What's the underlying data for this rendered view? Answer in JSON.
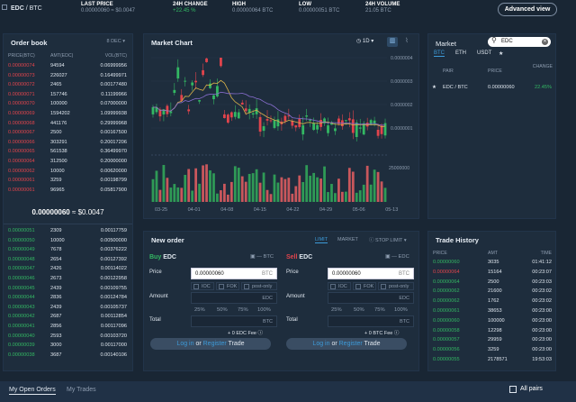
{
  "header": {
    "pair_base": "EDC",
    "pair_sep": " / ",
    "pair_quote": "BTC",
    "last_price_label": "LAST PRICE",
    "last_price_value": "0.00000060",
    "last_price_usd": "≈ $0.0047",
    "change_label": "24H CHANGE",
    "change_value": "+22.45 %",
    "high_label": "HIGH",
    "high_value": "0.00000064 BTC",
    "low_label": "LOW",
    "low_value": "0.00000051 BTC",
    "volume_label": "24H VOLUME",
    "volume_value": "21.05 BTC",
    "advanced_view": "Advanced view"
  },
  "orderbook": {
    "title": "Order book",
    "decimals": "8 DEC",
    "col_price": "PRICE(BTC)",
    "col_amt": "AMT(EDC)",
    "col_vol": "VOL(BTC)",
    "asks": [
      [
        "0.00000074",
        "94594",
        "0.06999956"
      ],
      [
        "0.00000073",
        "226027",
        "0.16499971"
      ],
      [
        "0.00000072",
        "2465",
        "0.00177480"
      ],
      [
        "0.00000071",
        "157746",
        "0.11199966"
      ],
      [
        "0.00000070",
        "100000",
        "0.07000000"
      ],
      [
        "0.00000069",
        "1594202",
        "1.09999938"
      ],
      [
        "0.00000068",
        "441176",
        "0.29999968"
      ],
      [
        "0.00000067",
        "2500",
        "0.00167500"
      ],
      [
        "0.00000066",
        "303291",
        "0.20017206"
      ],
      [
        "0.00000065",
        "561538",
        "0.36499970"
      ],
      [
        "0.00000064",
        "312500",
        "0.20000000"
      ],
      [
        "0.00000062",
        "10000",
        "0.00620000"
      ],
      [
        "0.00000061",
        "3259",
        "0.00198799"
      ],
      [
        "0.00000061",
        "96965",
        "0.05817900"
      ]
    ],
    "mid_price": "0.00000060",
    "mid_usd": "≈ $0.0047",
    "bids": [
      [
        "0.00000051",
        "2309",
        "0.00117759"
      ],
      [
        "0.00000050",
        "10000",
        "0.00500000"
      ],
      [
        "0.00000049",
        "7678",
        "0.00376222"
      ],
      [
        "0.00000048",
        "2654",
        "0.00127392"
      ],
      [
        "0.00000047",
        "2426",
        "0.00114022"
      ],
      [
        "0.00000046",
        "2673",
        "0.00122958"
      ],
      [
        "0.00000045",
        "2439",
        "0.00109755"
      ],
      [
        "0.00000044",
        "2836",
        "0.00124784"
      ],
      [
        "0.00000043",
        "2439",
        "0.00105737"
      ],
      [
        "0.00000042",
        "2687",
        "0.00112854"
      ],
      [
        "0.00000041",
        "2856",
        "0.00117096"
      ],
      [
        "0.00000040",
        "2593",
        "0.00103720"
      ],
      [
        "0.00000039",
        "3000",
        "0.00117000"
      ],
      [
        "0.00000038",
        "3687",
        "0.00140106"
      ]
    ]
  },
  "chart": {
    "title": "Market Chart",
    "interval": "1D",
    "y_ticks": [
      "0.0000004",
      "0.0000003",
      "0.0000002",
      "0.0000001"
    ],
    "vol_tick": "25000000",
    "x_ticks": [
      "03-25",
      "04-01",
      "04-08",
      "04-15",
      "04-22",
      "04-29",
      "05-06",
      "05-13"
    ]
  },
  "chart_data": {
    "type": "candlestick",
    "x": [
      "03-25",
      "04-01",
      "04-08",
      "04-15",
      "04-22",
      "04-29",
      "05-06",
      "05-13"
    ],
    "y_ticks": [
      1e-07,
      2e-07,
      3e-07,
      4e-07
    ],
    "volume_tick": 25000000
  },
  "market": {
    "title": "Market",
    "search_value": "EDC",
    "tabs": [
      "BTC",
      "ETH",
      "USDT",
      "★"
    ],
    "col_pair": "PAIR",
    "col_price": "PRICE",
    "col_change": "CHANGE",
    "rows": [
      {
        "star": "★",
        "pair": "EDC / BTC",
        "price": "0.00000060",
        "change": "22.45%"
      }
    ]
  },
  "neworder": {
    "title": "New order",
    "type_tabs": [
      "LIMIT",
      "MARKET",
      "STOP LIMIT"
    ],
    "buy_word": "Buy",
    "sell_word": "Sell",
    "asset": "EDC",
    "wallet_val": "— BTC",
    "wallet_val_sell": "— EDC",
    "price_label": "Price",
    "price_value": "0.00000060",
    "price_unit": "BTC",
    "options": [
      "IOC",
      "FOK",
      "post-only"
    ],
    "amount_label": "Amount",
    "amount_unit": "EDC",
    "pcts": [
      "25%",
      "50%",
      "75%",
      "100%"
    ],
    "total_label": "Total",
    "total_unit": "BTC",
    "buy_fee": "+ 0 EDC Fee",
    "sell_fee": "+ 0 BTC Fee",
    "login": "Log in",
    "or": " or ",
    "register": "Register",
    "trade": " Trade"
  },
  "trades": {
    "title": "Trade History",
    "col_price": "PRICE",
    "col_amt": "AMT",
    "col_time": "TIME",
    "rows": [
      [
        "0.00000060",
        "3035",
        "01:41:12",
        "g"
      ],
      [
        "0.00000064",
        "15164",
        "00:23:07",
        "r"
      ],
      [
        "0.00000064",
        "2500",
        "00:23:03",
        "g"
      ],
      [
        "0.00000062",
        "21600",
        "00:23:02",
        "g"
      ],
      [
        "0.00000062",
        "1762",
        "00:23:02",
        "g"
      ],
      [
        "0.00000061",
        "38653",
        "00:23:00",
        "g"
      ],
      [
        "0.00000060",
        "100000",
        "00:23:00",
        "g"
      ],
      [
        "0.00000058",
        "12298",
        "00:23:00",
        "g"
      ],
      [
        "0.00000057",
        "29959",
        "00:23:00",
        "g"
      ],
      [
        "0.00000056",
        "3259",
        "00:23:00",
        "g"
      ],
      [
        "0.00000055",
        "2178571",
        "19:53:03",
        "g"
      ]
    ]
  },
  "footer": {
    "tab_open": "My Open Orders",
    "tab_trades": "My Trades",
    "all_pairs": "All pairs"
  }
}
